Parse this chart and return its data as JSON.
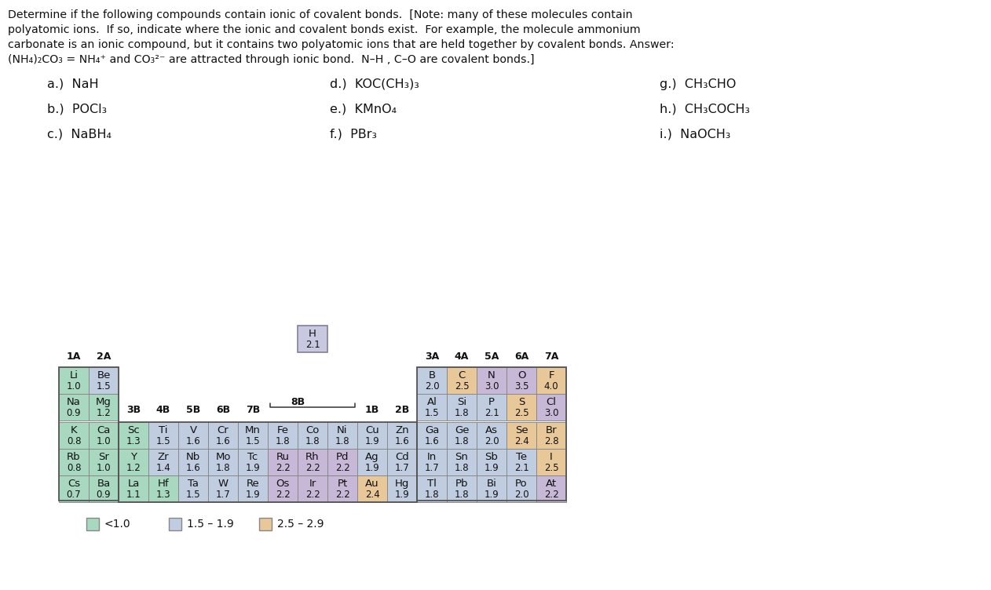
{
  "color_green": "#a8d8c0",
  "color_blue": "#c0cce0",
  "color_orange": "#e8c898",
  "color_purple": "#c8b8d8",
  "color_pink": "#e8a090",
  "legend_colors": [
    "#a8d8c0",
    "#c0cce0",
    "#e8c898"
  ],
  "legend_labels": [
    "<1.0",
    "1.5 – 1.9",
    "2.5 – 2.9"
  ],
  "elements": {
    "H": {
      "symbol": "H",
      "val": "2.1",
      "row": 0,
      "col": 8,
      "color": "#c8c8e0"
    },
    "Li": {
      "symbol": "Li",
      "val": "1.0",
      "row": 1,
      "col": 0,
      "color": "#a8d8c0"
    },
    "Be": {
      "symbol": "Be",
      "val": "1.5",
      "row": 1,
      "col": 1,
      "color": "#c0cce0"
    },
    "B": {
      "symbol": "B",
      "val": "2.0",
      "row": 1,
      "col": 12,
      "color": "#c0cce0"
    },
    "C": {
      "symbol": "C",
      "val": "2.5",
      "row": 1,
      "col": 13,
      "color": "#e8c898"
    },
    "N": {
      "symbol": "N",
      "val": "3.0",
      "row": 1,
      "col": 14,
      "color": "#c8b8d8"
    },
    "O": {
      "symbol": "O",
      "val": "3.5",
      "row": 1,
      "col": 15,
      "color": "#c8b8d8"
    },
    "F": {
      "symbol": "F",
      "val": "4.0",
      "row": 1,
      "col": 16,
      "color": "#e8c898"
    },
    "Na": {
      "symbol": "Na",
      "val": "0.9",
      "row": 2,
      "col": 0,
      "color": "#a8d8c0"
    },
    "Mg": {
      "symbol": "Mg",
      "val": "1.2",
      "row": 2,
      "col": 1,
      "color": "#a8d8c0"
    },
    "Al": {
      "symbol": "Al",
      "val": "1.5",
      "row": 2,
      "col": 12,
      "color": "#c0cce0"
    },
    "Si": {
      "symbol": "Si",
      "val": "1.8",
      "row": 2,
      "col": 13,
      "color": "#c0cce0"
    },
    "P": {
      "symbol": "P",
      "val": "2.1",
      "row": 2,
      "col": 14,
      "color": "#c0cce0"
    },
    "S": {
      "symbol": "S",
      "val": "2.5",
      "row": 2,
      "col": 15,
      "color": "#e8c898"
    },
    "Cl": {
      "symbol": "Cl",
      "val": "3.0",
      "row": 2,
      "col": 16,
      "color": "#c8b8d8"
    },
    "K": {
      "symbol": "K",
      "val": "0.8",
      "row": 3,
      "col": 0,
      "color": "#a8d8c0"
    },
    "Ca": {
      "symbol": "Ca",
      "val": "1.0",
      "row": 3,
      "col": 1,
      "color": "#a8d8c0"
    },
    "Sc": {
      "symbol": "Sc",
      "val": "1.3",
      "row": 3,
      "col": 2,
      "color": "#a8d8c0"
    },
    "Ti": {
      "symbol": "Ti",
      "val": "1.5",
      "row": 3,
      "col": 3,
      "color": "#c0cce0"
    },
    "V": {
      "symbol": "V",
      "val": "1.6",
      "row": 3,
      "col": 4,
      "color": "#c0cce0"
    },
    "Cr": {
      "symbol": "Cr",
      "val": "1.6",
      "row": 3,
      "col": 5,
      "color": "#c0cce0"
    },
    "Mn": {
      "symbol": "Mn",
      "val": "1.5",
      "row": 3,
      "col": 6,
      "color": "#c0cce0"
    },
    "Fe": {
      "symbol": "Fe",
      "val": "1.8",
      "row": 3,
      "col": 7,
      "color": "#c0cce0"
    },
    "Co": {
      "symbol": "Co",
      "val": "1.8",
      "row": 3,
      "col": 8,
      "color": "#c0cce0"
    },
    "Ni": {
      "symbol": "Ni",
      "val": "1.8",
      "row": 3,
      "col": 9,
      "color": "#c0cce0"
    },
    "Cu": {
      "symbol": "Cu",
      "val": "1.9",
      "row": 3,
      "col": 10,
      "color": "#c0cce0"
    },
    "Zn": {
      "symbol": "Zn",
      "val": "1.6",
      "row": 3,
      "col": 11,
      "color": "#c0cce0"
    },
    "Ga": {
      "symbol": "Ga",
      "val": "1.6",
      "row": 3,
      "col": 12,
      "color": "#c0cce0"
    },
    "Ge": {
      "symbol": "Ge",
      "val": "1.8",
      "row": 3,
      "col": 13,
      "color": "#c0cce0"
    },
    "As": {
      "symbol": "As",
      "val": "2.0",
      "row": 3,
      "col": 14,
      "color": "#c0cce0"
    },
    "Se": {
      "symbol": "Se",
      "val": "2.4",
      "row": 3,
      "col": 15,
      "color": "#e8c898"
    },
    "Br": {
      "symbol": "Br",
      "val": "2.8",
      "row": 3,
      "col": 16,
      "color": "#e8c898"
    },
    "Rb": {
      "symbol": "Rb",
      "val": "0.8",
      "row": 4,
      "col": 0,
      "color": "#a8d8c0"
    },
    "Sr": {
      "symbol": "Sr",
      "val": "1.0",
      "row": 4,
      "col": 1,
      "color": "#a8d8c0"
    },
    "Y": {
      "symbol": "Y",
      "val": "1.2",
      "row": 4,
      "col": 2,
      "color": "#a8d8c0"
    },
    "Zr": {
      "symbol": "Zr",
      "val": "1.4",
      "row": 4,
      "col": 3,
      "color": "#c0cce0"
    },
    "Nb": {
      "symbol": "Nb",
      "val": "1.6",
      "row": 4,
      "col": 4,
      "color": "#c0cce0"
    },
    "Mo": {
      "symbol": "Mo",
      "val": "1.8",
      "row": 4,
      "col": 5,
      "color": "#c0cce0"
    },
    "Tc": {
      "symbol": "Tc",
      "val": "1.9",
      "row": 4,
      "col": 6,
      "color": "#c0cce0"
    },
    "Ru": {
      "symbol": "Ru",
      "val": "2.2",
      "row": 4,
      "col": 7,
      "color": "#c8b8d8"
    },
    "Rh": {
      "symbol": "Rh",
      "val": "2.2",
      "row": 4,
      "col": 8,
      "color": "#c8b8d8"
    },
    "Pd": {
      "symbol": "Pd",
      "val": "2.2",
      "row": 4,
      "col": 9,
      "color": "#c8b8d8"
    },
    "Ag": {
      "symbol": "Ag",
      "val": "1.9",
      "row": 4,
      "col": 10,
      "color": "#c0cce0"
    },
    "Cd": {
      "symbol": "Cd",
      "val": "1.7",
      "row": 4,
      "col": 11,
      "color": "#c0cce0"
    },
    "In": {
      "symbol": "In",
      "val": "1.7",
      "row": 4,
      "col": 12,
      "color": "#c0cce0"
    },
    "Sn": {
      "symbol": "Sn",
      "val": "1.8",
      "row": 4,
      "col": 13,
      "color": "#c0cce0"
    },
    "Sb": {
      "symbol": "Sb",
      "val": "1.9",
      "row": 4,
      "col": 14,
      "color": "#c0cce0"
    },
    "Te": {
      "symbol": "Te",
      "val": "2.1",
      "row": 4,
      "col": 15,
      "color": "#c0cce0"
    },
    "I": {
      "symbol": "I",
      "val": "2.5",
      "row": 4,
      "col": 16,
      "color": "#e8c898"
    },
    "Cs": {
      "symbol": "Cs",
      "val": "0.7",
      "row": 5,
      "col": 0,
      "color": "#a8d8c0"
    },
    "Ba": {
      "symbol": "Ba",
      "val": "0.9",
      "row": 5,
      "col": 1,
      "color": "#a8d8c0"
    },
    "La": {
      "symbol": "La",
      "val": "1.1",
      "row": 5,
      "col": 2,
      "color": "#a8d8c0"
    },
    "Hf": {
      "symbol": "Hf",
      "val": "1.3",
      "row": 5,
      "col": 3,
      "color": "#a8d8c0"
    },
    "Ta": {
      "symbol": "Ta",
      "val": "1.5",
      "row": 5,
      "col": 4,
      "color": "#c0cce0"
    },
    "W": {
      "symbol": "W",
      "val": "1.7",
      "row": 5,
      "col": 5,
      "color": "#c0cce0"
    },
    "Re": {
      "symbol": "Re",
      "val": "1.9",
      "row": 5,
      "col": 6,
      "color": "#c0cce0"
    },
    "Os": {
      "symbol": "Os",
      "val": "2.2",
      "row": 5,
      "col": 7,
      "color": "#c8b8d8"
    },
    "Ir": {
      "symbol": "Ir",
      "val": "2.2",
      "row": 5,
      "col": 8,
      "color": "#c8b8d8"
    },
    "Pt": {
      "symbol": "Pt",
      "val": "2.2",
      "row": 5,
      "col": 9,
      "color": "#c8b8d8"
    },
    "Au": {
      "symbol": "Au",
      "val": "2.4",
      "row": 5,
      "col": 10,
      "color": "#e8c898"
    },
    "Hg": {
      "symbol": "Hg",
      "val": "1.9",
      "row": 5,
      "col": 11,
      "color": "#c0cce0"
    },
    "Tl": {
      "symbol": "Tl",
      "val": "1.8",
      "row": 5,
      "col": 12,
      "color": "#c0cce0"
    },
    "Pb": {
      "symbol": "Pb",
      "val": "1.8",
      "row": 5,
      "col": 13,
      "color": "#c0cce0"
    },
    "Bi": {
      "symbol": "Bi",
      "val": "1.9",
      "row": 5,
      "col": 14,
      "color": "#c0cce0"
    },
    "Po": {
      "symbol": "Po",
      "val": "2.0",
      "row": 5,
      "col": 15,
      "color": "#c0cce0"
    },
    "At": {
      "symbol": "At",
      "val": "2.2",
      "row": 5,
      "col": 16,
      "color": "#c8b8d8"
    }
  }
}
